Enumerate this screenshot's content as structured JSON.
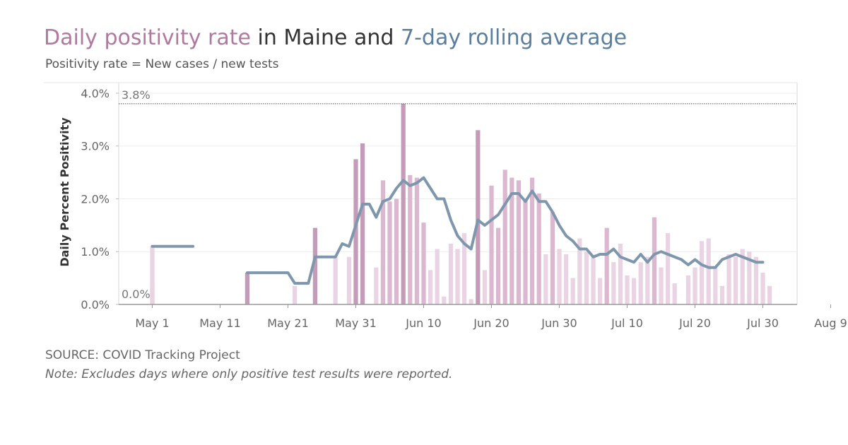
{
  "title": {
    "part1": "Daily positivity rate",
    "part2": " in Maine and ",
    "part3": "7-day rolling average"
  },
  "subtitle": "Positivity rate = New cases / new tests",
  "source": "SOURCE: COVID Tracking Project",
  "note": "Note: Excludes days where only positive test results were reported.",
  "colors": {
    "title_pink": "#b07a9e",
    "title_blue": "#5b7e9f",
    "bar_light": "#ead3e2",
    "bar_medium": "#dcb8d0",
    "bar_dark": "#c49bb8",
    "line": "#7f97ad"
  },
  "chart_data": {
    "type": "bar",
    "ylabel": "Daily Percent Positivity",
    "ylim": [
      0,
      4.2
    ],
    "y_ticks": [
      "0.0%",
      "1.0%",
      "2.0%",
      "3.0%",
      "4.0%"
    ],
    "x_start": "May 1",
    "x_ticks": [
      {
        "label": "May 1",
        "day": 0
      },
      {
        "label": "May 11",
        "day": 10
      },
      {
        "label": "May 21",
        "day": 20
      },
      {
        "label": "May 31",
        "day": 30
      },
      {
        "label": "Jun 10",
        "day": 40
      },
      {
        "label": "Jun 20",
        "day": 50
      },
      {
        "label": "Jun 30",
        "day": 60
      },
      {
        "label": "Jul 10",
        "day": 70
      },
      {
        "label": "Jul 20",
        "day": 80
      },
      {
        "label": "Jul 30",
        "day": 90
      },
      {
        "label": "Aug 9",
        "day": 100
      }
    ],
    "reference_line": {
      "label": "3.8%",
      "value": 3.8
    },
    "min_label": "0.0%",
    "grid": true,
    "series": [
      {
        "name": "Daily positivity rate",
        "points": [
          [
            0,
            1.1
          ],
          [
            0,
            0.4
          ],
          [
            14,
            0.6
          ],
          [
            21,
            0.35
          ],
          [
            24,
            1.45
          ],
          [
            27,
            0.9
          ],
          [
            29,
            0.9
          ],
          [
            30,
            2.75
          ],
          [
            31,
            3.05
          ],
          [
            33,
            0.7
          ],
          [
            34,
            2.35
          ],
          [
            35,
            1.95
          ],
          [
            36,
            2.0
          ],
          [
            37,
            3.8
          ],
          [
            38,
            2.45
          ],
          [
            39,
            2.4
          ],
          [
            40,
            1.55
          ],
          [
            41,
            0.65
          ],
          [
            42,
            1.05
          ],
          [
            43,
            0.15
          ],
          [
            44,
            1.15
          ],
          [
            45,
            1.05
          ],
          [
            46,
            1.35
          ],
          [
            47,
            0.1
          ],
          [
            48,
            3.3
          ],
          [
            49,
            0.65
          ],
          [
            50,
            2.25
          ],
          [
            51,
            1.45
          ],
          [
            52,
            2.55
          ],
          [
            53,
            2.4
          ],
          [
            54,
            2.35
          ],
          [
            55,
            2.0
          ],
          [
            56,
            2.4
          ],
          [
            57,
            2.1
          ],
          [
            58,
            0.95
          ],
          [
            59,
            1.75
          ],
          [
            60,
            1.05
          ],
          [
            61,
            0.95
          ],
          [
            62,
            0.5
          ],
          [
            63,
            1.25
          ],
          [
            64,
            1.0
          ],
          [
            65,
            0.9
          ],
          [
            66,
            0.5
          ],
          [
            67,
            1.45
          ],
          [
            68,
            0.8
          ],
          [
            69,
            1.15
          ],
          [
            70,
            0.55
          ],
          [
            71,
            0.5
          ],
          [
            72,
            0.8
          ],
          [
            73,
            0.9
          ],
          [
            74,
            1.65
          ],
          [
            75,
            0.7
          ],
          [
            76,
            1.35
          ],
          [
            77,
            0.4
          ],
          [
            79,
            0.55
          ],
          [
            80,
            0.7
          ],
          [
            81,
            1.2
          ],
          [
            82,
            1.25
          ],
          [
            83,
            0.7
          ],
          [
            84,
            0.35
          ],
          [
            85,
            0.95
          ],
          [
            86,
            0.9
          ],
          [
            87,
            1.05
          ],
          [
            88,
            1.0
          ],
          [
            89,
            0.9
          ],
          [
            90,
            0.6
          ],
          [
            91,
            0.35
          ]
        ]
      },
      {
        "name": "7-day rolling average",
        "points": [
          [
            0,
            1.1
          ],
          [
            6,
            1.1
          ],
          [
            null,
            null
          ],
          [
            14,
            0.6
          ],
          [
            20,
            0.6
          ],
          [
            21,
            0.4
          ],
          [
            23,
            0.4
          ],
          [
            24,
            0.9
          ],
          [
            26,
            0.9
          ],
          [
            27,
            0.9
          ],
          [
            28,
            1.15
          ],
          [
            29,
            1.1
          ],
          [
            30,
            1.5
          ],
          [
            31,
            1.9
          ],
          [
            32,
            1.9
          ],
          [
            33,
            1.65
          ],
          [
            34,
            1.95
          ],
          [
            35,
            2.0
          ],
          [
            36,
            2.2
          ],
          [
            37,
            2.35
          ],
          [
            38,
            2.25
          ],
          [
            39,
            2.3
          ],
          [
            40,
            2.4
          ],
          [
            41,
            2.2
          ],
          [
            42,
            2.0
          ],
          [
            43,
            2.0
          ],
          [
            44,
            1.6
          ],
          [
            45,
            1.3
          ],
          [
            46,
            1.15
          ],
          [
            47,
            1.05
          ],
          [
            48,
            1.6
          ],
          [
            49,
            1.5
          ],
          [
            50,
            1.6
          ],
          [
            51,
            1.7
          ],
          [
            52,
            1.9
          ],
          [
            53,
            2.1
          ],
          [
            54,
            2.1
          ],
          [
            55,
            1.95
          ],
          [
            56,
            2.15
          ],
          [
            57,
            1.95
          ],
          [
            58,
            1.95
          ],
          [
            59,
            1.75
          ],
          [
            60,
            1.5
          ],
          [
            61,
            1.3
          ],
          [
            62,
            1.2
          ],
          [
            63,
            1.05
          ],
          [
            64,
            1.05
          ],
          [
            65,
            0.9
          ],
          [
            66,
            0.95
          ],
          [
            67,
            0.95
          ],
          [
            68,
            1.05
          ],
          [
            69,
            0.9
          ],
          [
            70,
            0.85
          ],
          [
            71,
            0.8
          ],
          [
            72,
            0.95
          ],
          [
            73,
            0.8
          ],
          [
            74,
            0.95
          ],
          [
            75,
            1.0
          ],
          [
            76,
            0.95
          ],
          [
            77,
            0.9
          ],
          [
            78,
            0.85
          ],
          [
            79,
            0.75
          ],
          [
            80,
            0.85
          ],
          [
            81,
            0.75
          ],
          [
            82,
            0.7
          ],
          [
            83,
            0.7
          ],
          [
            84,
            0.85
          ],
          [
            85,
            0.9
          ],
          [
            86,
            0.95
          ],
          [
            87,
            0.9
          ],
          [
            88,
            0.85
          ],
          [
            89,
            0.8
          ],
          [
            90,
            0.8
          ]
        ]
      }
    ]
  }
}
